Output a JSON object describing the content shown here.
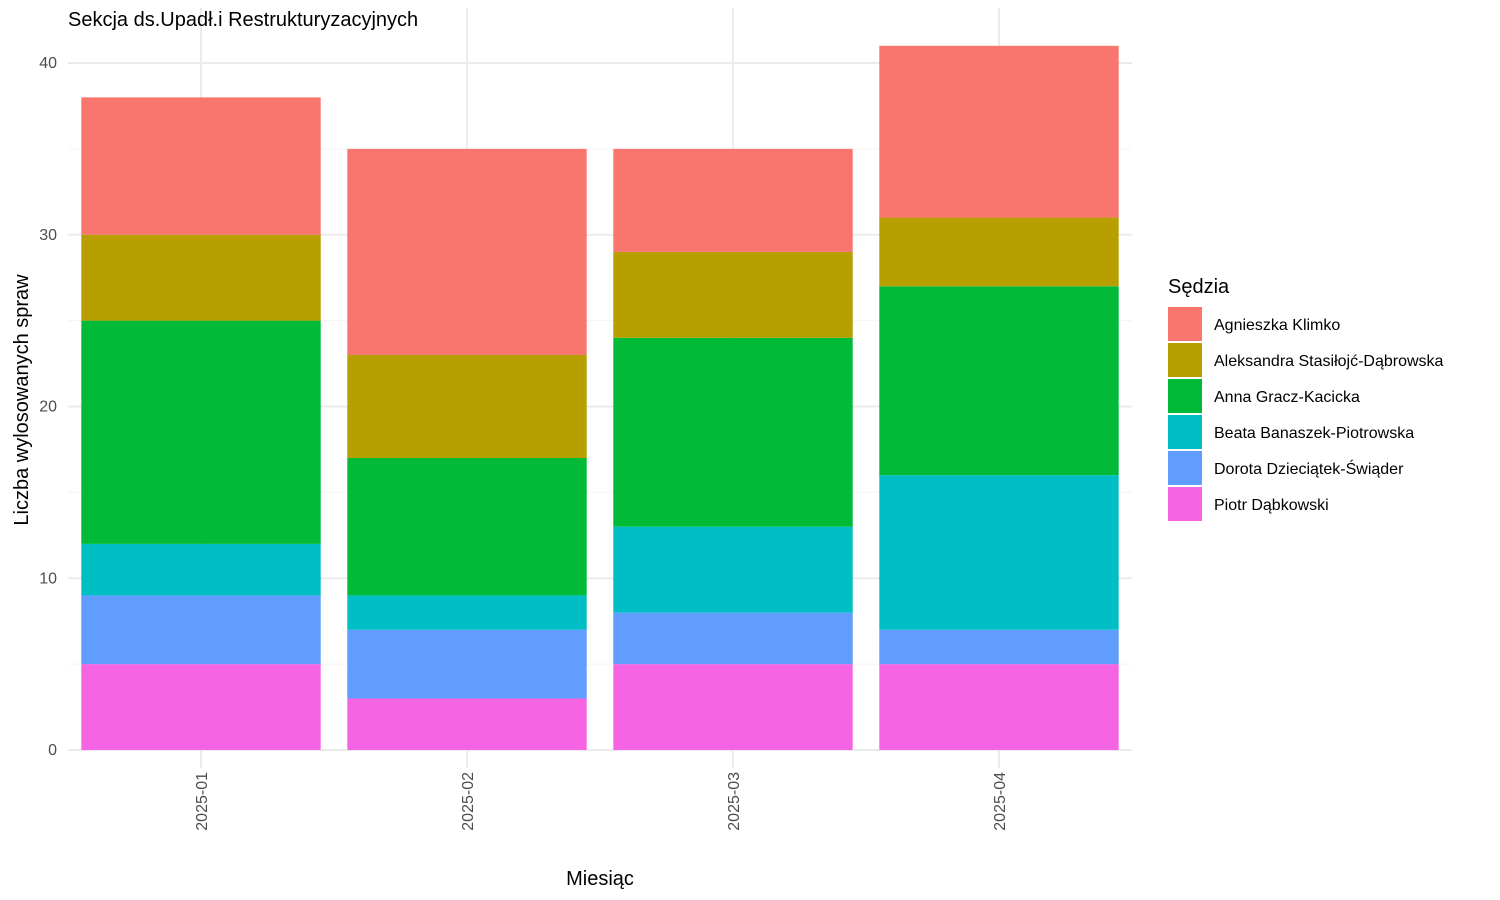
{
  "chart_data": {
    "type": "bar",
    "stacked": true,
    "title": "Sekcja ds.Upadł.i Restrukturyzacyjnych",
    "xlabel": "Miesiąc",
    "ylabel": "Liczba wylosowanych spraw",
    "ylim": [
      0,
      42
    ],
    "yticks": [
      0,
      10,
      20,
      30,
      40
    ],
    "grid": true,
    "legend_position": "right",
    "legend_title": "Sędzia",
    "categories": [
      "2025-01",
      "2025-02",
      "2025-03",
      "2025-04"
    ],
    "series": [
      {
        "name": "Piotr Dąbkowski",
        "color": "#F564E3",
        "values": [
          5,
          3,
          5,
          5
        ]
      },
      {
        "name": "Dorota Dzieciątek-Świąder",
        "color": "#619CFF",
        "values": [
          4,
          4,
          3,
          2
        ]
      },
      {
        "name": "Beata Banaszek-Piotrowska",
        "color": "#00BFC4",
        "values": [
          3,
          2,
          5,
          9
        ]
      },
      {
        "name": "Anna Gracz-Kacicka",
        "color": "#00BA38",
        "values": [
          13,
          8,
          11,
          11
        ]
      },
      {
        "name": "Aleksandra Stasiłojć-Dąbrowska",
        "color": "#B79F00",
        "values": [
          5,
          6,
          5,
          4
        ]
      },
      {
        "name": "Agnieszka Klimko",
        "color": "#F8766D",
        "values": [
          8,
          12,
          6,
          10
        ]
      }
    ]
  }
}
